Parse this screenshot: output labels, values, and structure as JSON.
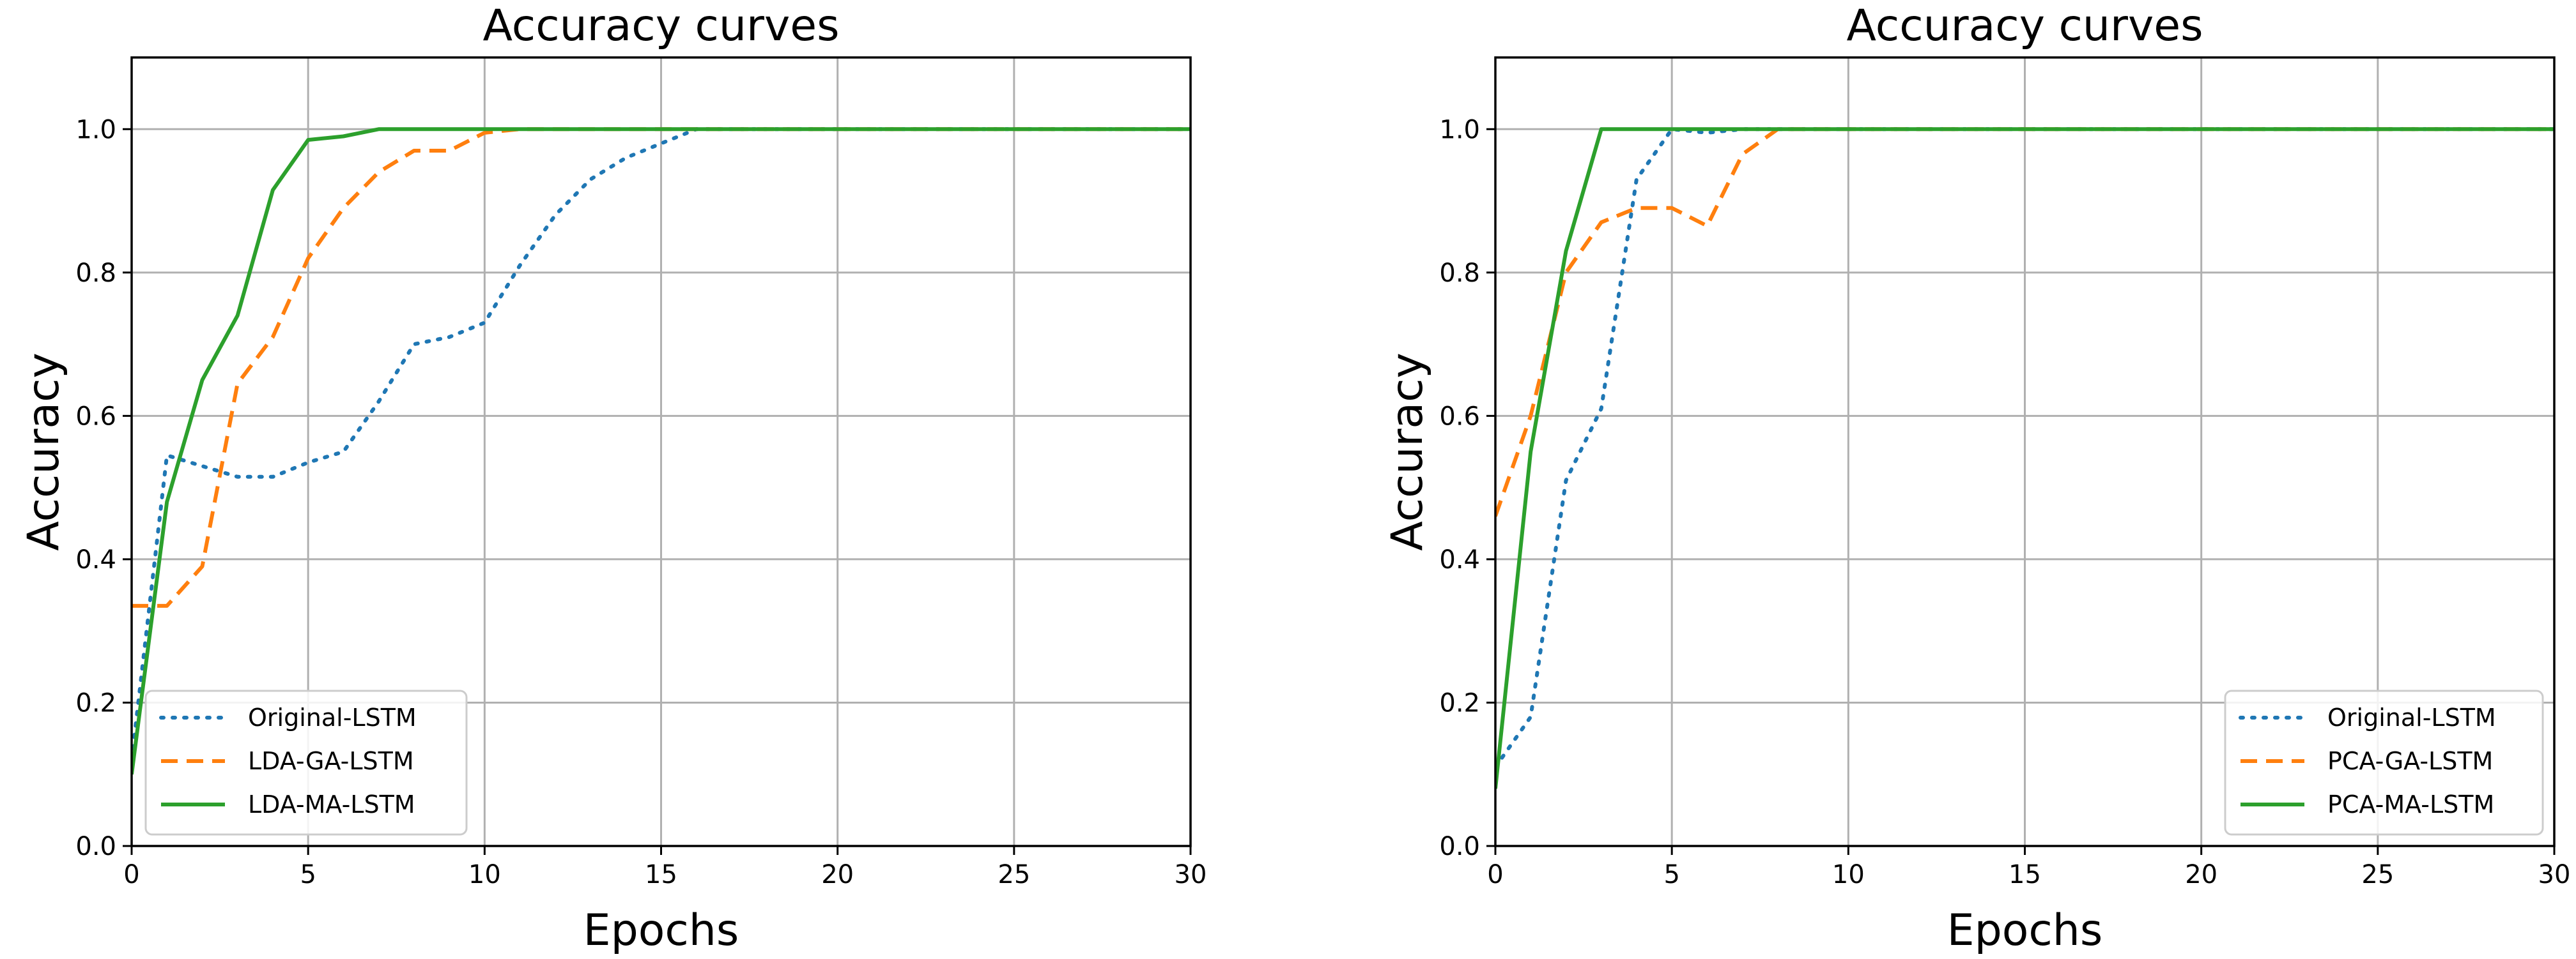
{
  "chart_data": [
    {
      "type": "line",
      "title": "Accuracy curves",
      "xlabel": "Epochs",
      "ylabel": "Accuracy",
      "xlim": [
        0,
        30
      ],
      "ylim": [
        0.0,
        1.1
      ],
      "xticks": [
        "0",
        "5",
        "10",
        "15",
        "20",
        "25",
        "30"
      ],
      "yticks": [
        "0.0",
        "0.2",
        "0.4",
        "0.6",
        "0.8",
        "1.0"
      ],
      "grid": true,
      "legend_position": "lower-left",
      "series": [
        {
          "name": "Original-LSTM",
          "color": "#1f77b4",
          "style": "dotted",
          "x": [
            0,
            1,
            2,
            3,
            4,
            5,
            6,
            7,
            8,
            9,
            10,
            11,
            12,
            13,
            14,
            15,
            16,
            17,
            18,
            19,
            20,
            21,
            22,
            23,
            24,
            25,
            26,
            27,
            28,
            29,
            30
          ],
          "y": [
            0.12,
            0.545,
            0.53,
            0.515,
            0.515,
            0.535,
            0.55,
            0.62,
            0.7,
            0.71,
            0.73,
            0.81,
            0.88,
            0.93,
            0.96,
            0.98,
            1.0,
            1.0,
            1.0,
            1.0,
            1.0,
            1.0,
            1.0,
            1.0,
            1.0,
            1.0,
            1.0,
            1.0,
            1.0,
            1.0,
            1.0
          ]
        },
        {
          "name": "LDA-GA-LSTM",
          "color": "#ff7f0e",
          "style": "dashed",
          "x": [
            0,
            1,
            2,
            3,
            4,
            5,
            6,
            7,
            8,
            9,
            10,
            11,
            12,
            13,
            14,
            15,
            16,
            17,
            18,
            19,
            20,
            21,
            22,
            23,
            24,
            25,
            26,
            27,
            28,
            29,
            30
          ],
          "y": [
            0.335,
            0.335,
            0.39,
            0.645,
            0.71,
            0.82,
            0.89,
            0.94,
            0.97,
            0.97,
            0.995,
            1.0,
            1.0,
            1.0,
            1.0,
            1.0,
            1.0,
            1.0,
            1.0,
            1.0,
            1.0,
            1.0,
            1.0,
            1.0,
            1.0,
            1.0,
            1.0,
            1.0,
            1.0,
            1.0,
            1.0
          ]
        },
        {
          "name": "LDA-MA-LSTM",
          "color": "#2ca02c",
          "style": "solid",
          "x": [
            0,
            1,
            2,
            3,
            4,
            5,
            6,
            7,
            8,
            9,
            10,
            11,
            12,
            13,
            14,
            15,
            16,
            17,
            18,
            19,
            20,
            21,
            22,
            23,
            24,
            25,
            26,
            27,
            28,
            29,
            30
          ],
          "y": [
            0.1,
            0.48,
            0.65,
            0.74,
            0.915,
            0.985,
            0.99,
            1.0,
            1.0,
            1.0,
            1.0,
            1.0,
            1.0,
            1.0,
            1.0,
            1.0,
            1.0,
            1.0,
            1.0,
            1.0,
            1.0,
            1.0,
            1.0,
            1.0,
            1.0,
            1.0,
            1.0,
            1.0,
            1.0,
            1.0,
            1.0
          ]
        }
      ]
    },
    {
      "type": "line",
      "title": "Accuracy curves",
      "xlabel": "Epochs",
      "ylabel": "Accuracy",
      "xlim": [
        0,
        30
      ],
      "ylim": [
        0.0,
        1.1
      ],
      "xticks": [
        "0",
        "5",
        "10",
        "15",
        "20",
        "25",
        "30"
      ],
      "yticks": [
        "0.0",
        "0.2",
        "0.4",
        "0.6",
        "0.8",
        "1.0"
      ],
      "grid": true,
      "legend_position": "lower-right",
      "series": [
        {
          "name": "Original-LSTM",
          "color": "#1f77b4",
          "style": "dotted",
          "x": [
            0,
            1,
            2,
            3,
            4,
            5,
            6,
            7,
            8,
            9,
            10,
            11,
            12,
            13,
            14,
            15,
            16,
            17,
            18,
            19,
            20,
            21,
            22,
            23,
            24,
            25,
            26,
            27,
            28,
            29,
            30
          ],
          "y": [
            0.11,
            0.18,
            0.51,
            0.61,
            0.93,
            1.0,
            0.995,
            1.0,
            1.0,
            1.0,
            1.0,
            1.0,
            1.0,
            1.0,
            1.0,
            1.0,
            1.0,
            1.0,
            1.0,
            1.0,
            1.0,
            1.0,
            1.0,
            1.0,
            1.0,
            1.0,
            1.0,
            1.0,
            1.0,
            1.0,
            1.0
          ]
        },
        {
          "name": "PCA-GA-LSTM",
          "color": "#ff7f0e",
          "style": "dashed",
          "x": [
            0,
            1,
            2,
            3,
            4,
            5,
            6,
            7,
            8,
            9,
            10,
            11,
            12,
            13,
            14,
            15,
            16,
            17,
            18,
            19,
            20,
            21,
            22,
            23,
            24,
            25,
            26,
            27,
            28,
            29,
            30
          ],
          "y": [
            0.46,
            0.6,
            0.8,
            0.87,
            0.89,
            0.89,
            0.865,
            0.965,
            1.0,
            1.0,
            1.0,
            1.0,
            1.0,
            1.0,
            1.0,
            1.0,
            1.0,
            1.0,
            1.0,
            1.0,
            1.0,
            1.0,
            1.0,
            1.0,
            1.0,
            1.0,
            1.0,
            1.0,
            1.0,
            1.0,
            1.0
          ]
        },
        {
          "name": "PCA-MA-LSTM",
          "color": "#2ca02c",
          "style": "solid",
          "x": [
            0,
            1,
            2,
            3,
            4,
            5,
            6,
            7,
            8,
            9,
            10,
            11,
            12,
            13,
            14,
            15,
            16,
            17,
            18,
            19,
            20,
            21,
            22,
            23,
            24,
            25,
            26,
            27,
            28,
            29,
            30
          ],
          "y": [
            0.08,
            0.55,
            0.83,
            1.0,
            1.0,
            1.0,
            1.0,
            1.0,
            1.0,
            1.0,
            1.0,
            1.0,
            1.0,
            1.0,
            1.0,
            1.0,
            1.0,
            1.0,
            1.0,
            1.0,
            1.0,
            1.0,
            1.0,
            1.0,
            1.0,
            1.0,
            1.0,
            1.0,
            1.0,
            1.0,
            1.0
          ]
        }
      ]
    }
  ]
}
